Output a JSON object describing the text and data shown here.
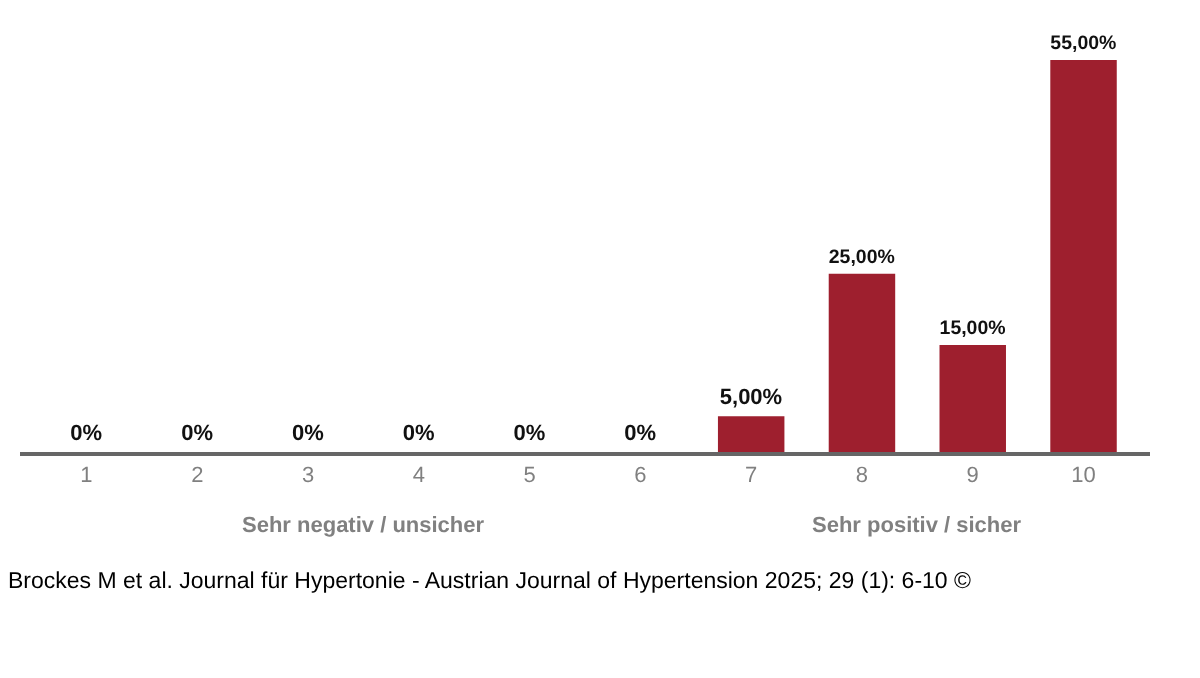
{
  "chart_data": {
    "type": "bar",
    "categories": [
      "1",
      "2",
      "3",
      "4",
      "5",
      "6",
      "7",
      "8",
      "9",
      "10"
    ],
    "values": [
      0,
      0,
      0,
      0,
      0,
      0,
      5,
      25,
      15,
      55
    ],
    "value_labels": [
      "0%",
      "0%",
      "0%",
      "0%",
      "0%",
      "0%",
      "5,00%",
      "25,00%",
      "15,00%",
      "55,00%"
    ],
    "color": "#9e1f2e",
    "legend": false,
    "annotations": [
      "Sehr negativ / unsicher",
      "Sehr positiv / sicher",
      "Brockes M et al. Journal für Hypertonie - Austrian Journal of Hypertension 2025; 29 (1): 6-10 ©"
    ]
  }
}
